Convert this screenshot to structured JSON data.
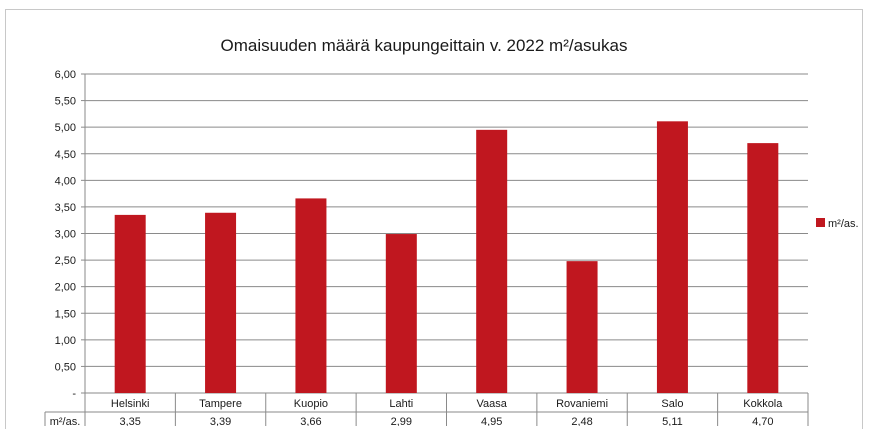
{
  "chart_data": {
    "type": "bar",
    "title": "Omaisuuden määrä kaupungeittain v. 2022 m²/asukas",
    "categories": [
      "Helsinki",
      "Tampere",
      "Kuopio",
      "Lahti",
      "Vaasa",
      "Rovaniemi",
      "Salo",
      "Kokkola"
    ],
    "series": [
      {
        "name": "m²/as.",
        "values": [
          3.35,
          3.39,
          3.66,
          2.99,
          4.95,
          2.48,
          5.11,
          4.7
        ],
        "value_labels": [
          "3,35",
          "3,39",
          "3,66",
          "2,99",
          "4,95",
          "2,48",
          "5,11",
          "4,70"
        ],
        "color": "#c0171f"
      }
    ],
    "ylim": [
      0,
      6
    ],
    "y_ticks": [
      0,
      0.5,
      1,
      1.5,
      2,
      2.5,
      3,
      3.5,
      4,
      4.5,
      5,
      5.5,
      6
    ],
    "y_tick_labels": [
      "-",
      "0,50",
      "1,00",
      "1,50",
      "2,00",
      "2,50",
      "3,00",
      "3,50",
      "4,00",
      "4,50",
      "5,00",
      "5,50",
      "6,00"
    ],
    "grid": true,
    "legend": "right",
    "data_table": true,
    "table_row_label": "m²/as."
  }
}
